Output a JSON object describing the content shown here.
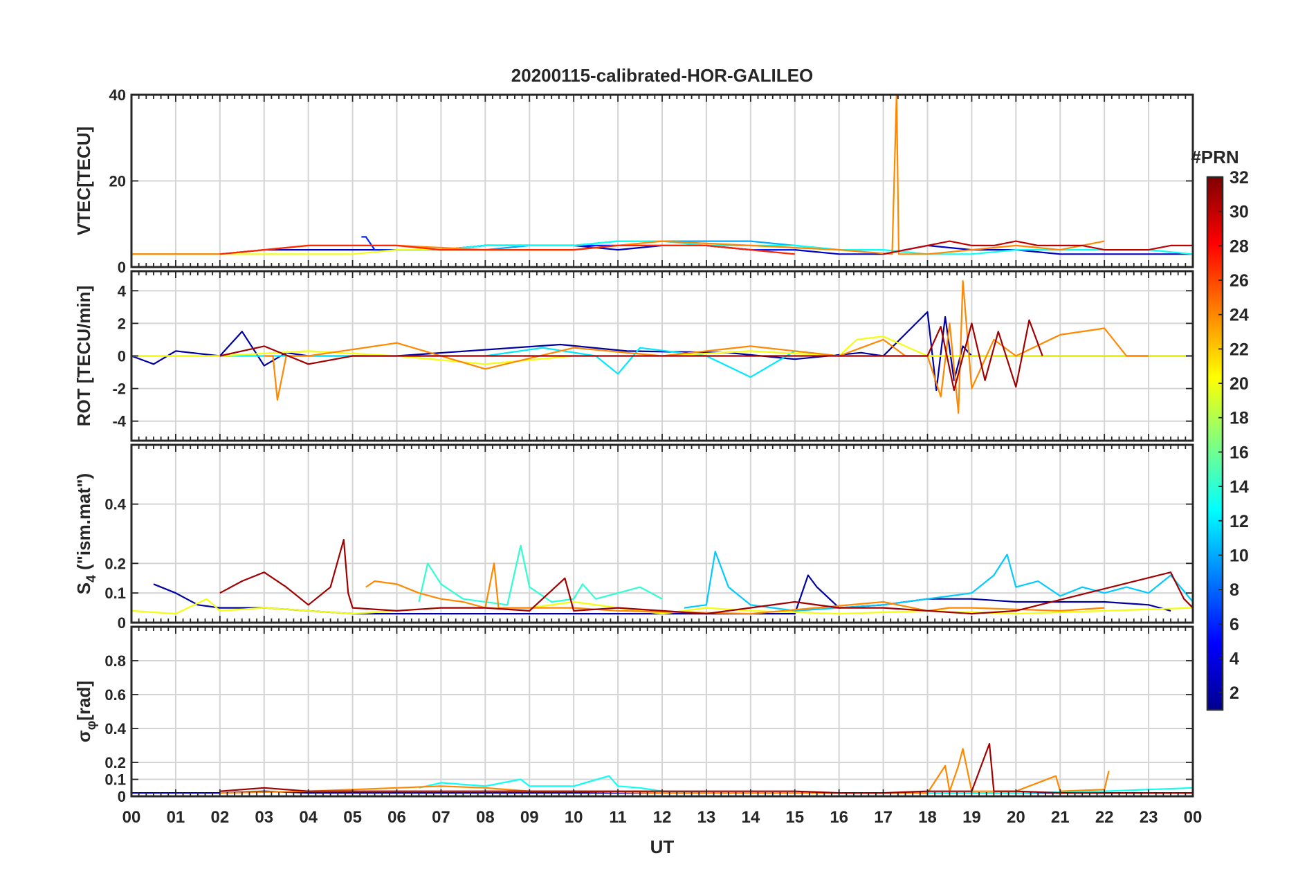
{
  "figure": {
    "title": "20200115-calibrated-HOR-GALILEO",
    "x_label": "UT",
    "x_ticks": [
      "00",
      "01",
      "02",
      "03",
      "04",
      "05",
      "06",
      "07",
      "08",
      "09",
      "10",
      "11",
      "12",
      "13",
      "14",
      "15",
      "16",
      "17",
      "18",
      "19",
      "20",
      "21",
      "22",
      "23",
      "00"
    ]
  },
  "colorbar": {
    "title": "#PRN",
    "ticks": [
      2,
      4,
      6,
      8,
      10,
      12,
      14,
      16,
      18,
      20,
      22,
      24,
      26,
      28,
      30,
      32
    ],
    "range": [
      1,
      32
    ],
    "colormap": "jet"
  },
  "chart_data": [
    {
      "type": "line",
      "id": "vtec",
      "ylabel": "VTEC[TECU]",
      "ylim": [
        0,
        40
      ],
      "yticks": [
        0,
        20,
        40
      ],
      "grid": true,
      "series": [
        {
          "prn": 3,
          "x": [
            0,
            1,
            2,
            3,
            4,
            5,
            6,
            7,
            8,
            9,
            10,
            11,
            12,
            13,
            14,
            15,
            16,
            17,
            18,
            19,
            20,
            21,
            22,
            23,
            24
          ],
          "y": [
            3,
            3,
            3,
            4,
            4,
            4,
            4,
            4,
            5,
            5,
            5,
            4,
            5,
            5,
            4,
            4,
            3,
            3,
            5,
            4,
            4,
            3,
            3,
            3,
            3
          ]
        },
        {
          "prn": 6,
          "x": [
            5.2,
            5.3,
            5.5,
            6,
            7,
            8,
            9,
            10,
            11,
            12,
            13,
            14,
            15
          ],
          "y": [
            7,
            7,
            4,
            4,
            4,
            5,
            5,
            5,
            5,
            5,
            5,
            4,
            4
          ]
        },
        {
          "prn": 10,
          "x": [
            6,
            7,
            8,
            9,
            10,
            11,
            12,
            13,
            14,
            15,
            16,
            17
          ],
          "y": [
            4,
            4,
            4,
            5,
            5,
            6,
            6,
            6,
            6,
            5,
            4,
            4
          ]
        },
        {
          "prn": 13,
          "x": [
            7,
            8,
            9,
            10,
            11,
            12,
            13,
            14,
            15,
            16,
            17,
            18,
            19,
            20,
            21,
            22,
            23,
            24
          ],
          "y": [
            4,
            5,
            5,
            5,
            6,
            6,
            5,
            5,
            5,
            4,
            4,
            3,
            3,
            4,
            4,
            4,
            4,
            3
          ]
        },
        {
          "prn": 20,
          "x": [
            0,
            1,
            2,
            3,
            4,
            5,
            6,
            7,
            8,
            9,
            10,
            11,
            12,
            13
          ],
          "y": [
            3,
            3,
            3,
            3,
            3,
            3,
            4,
            4,
            4,
            4,
            4,
            5,
            5,
            5
          ]
        },
        {
          "prn": 24,
          "x": [
            0,
            2,
            4,
            6,
            8,
            10,
            12,
            14,
            16,
            17.2,
            17.3,
            17.35,
            17.5,
            18,
            19,
            20,
            21,
            22
          ],
          "y": [
            3,
            3,
            5,
            5,
            4,
            4,
            6,
            5,
            4,
            3,
            40,
            3,
            3,
            3,
            4,
            5,
            4,
            6
          ]
        },
        {
          "prn": 27,
          "x": [
            2,
            3,
            4,
            5,
            6,
            7,
            8,
            9,
            10,
            11,
            12,
            13,
            14,
            15
          ],
          "y": [
            3,
            4,
            5,
            5,
            5,
            4,
            4,
            4,
            4,
            5,
            5,
            5,
            4,
            3
          ]
        },
        {
          "prn": 30,
          "x": [
            17,
            18,
            18.5,
            19,
            19.5,
            20,
            20.5,
            21,
            21.5,
            22,
            22.5,
            23,
            23.5,
            24
          ],
          "y": [
            3,
            5,
            6,
            5,
            5,
            6,
            5,
            5,
            5,
            4,
            4,
            4,
            5,
            5
          ]
        }
      ]
    },
    {
      "type": "line",
      "id": "rot",
      "ylabel": "ROT [TECU/min]",
      "ylim": [
        -5.2,
        5.2
      ],
      "yticks": [
        -4,
        -2,
        0,
        2,
        4
      ],
      "grid": true,
      "series": [
        {
          "prn": 2,
          "x": [
            0,
            0.5,
            1,
            2,
            2.5,
            3,
            3.5,
            4,
            5,
            6,
            9.7,
            11.2,
            13.5,
            15,
            16.5,
            17,
            18,
            18.2,
            18.4,
            18.6,
            18.8,
            19,
            20,
            21,
            22,
            23,
            24
          ],
          "y": [
            0,
            -0.5,
            0.3,
            0,
            1.5,
            -0.6,
            0.2,
            0,
            0,
            0,
            0.7,
            0.3,
            0.2,
            -0.2,
            0.2,
            0,
            2.7,
            -2.1,
            2.4,
            -1.5,
            0.6,
            0,
            0,
            0,
            0,
            0,
            0
          ]
        },
        {
          "prn": 12,
          "x": [
            0,
            4,
            8,
            9.3,
            10.5,
            11,
            11.5,
            13,
            14,
            15,
            16,
            18,
            20,
            21,
            22,
            23,
            24
          ],
          "y": [
            0,
            0,
            0,
            0.5,
            0,
            -1.1,
            0.5,
            0,
            -1.3,
            0.3,
            0,
            0,
            0,
            0,
            0,
            0,
            0
          ]
        },
        {
          "prn": 20,
          "x": [
            0,
            2,
            4,
            6,
            8,
            10,
            12,
            14,
            16,
            16.4,
            17,
            18,
            20,
            22,
            24
          ],
          "y": [
            0,
            0,
            0.3,
            0,
            -0.5,
            0,
            0,
            0.3,
            0,
            1,
            1.2,
            0,
            0,
            0,
            0
          ]
        },
        {
          "prn": 24,
          "x": [
            3,
            3.2,
            3.3,
            3.5,
            4,
            6,
            8,
            10,
            12,
            14,
            16,
            17,
            17.5,
            18,
            18.3,
            18.5,
            18.7,
            18.8,
            19,
            19.5,
            20,
            21,
            22,
            22.5,
            23
          ],
          "y": [
            0,
            0,
            -2.7,
            0,
            0,
            0.8,
            -0.8,
            0.5,
            0,
            0.6,
            0,
            1,
            0,
            0,
            -2.5,
            2,
            -3.5,
            4.6,
            -2,
            1,
            0,
            1.3,
            1.7,
            0,
            0
          ]
        },
        {
          "prn": 31,
          "x": [
            2,
            3,
            4,
            5,
            6,
            7,
            8,
            9,
            10,
            11,
            12,
            13,
            14,
            15,
            16,
            17,
            18,
            18.3,
            18.6,
            19,
            19.3,
            19.6,
            20,
            20.3,
            20.6
          ],
          "y": [
            0,
            0.6,
            -0.5,
            0,
            0,
            0,
            0,
            0,
            0,
            0,
            0,
            0,
            0,
            0,
            0,
            0,
            0,
            1.8,
            -2.1,
            2,
            -1.5,
            1.5,
            -1.9,
            2.2,
            0
          ]
        }
      ]
    },
    {
      "type": "line",
      "id": "s4",
      "ylabel": "S4 (\"ism.mat\")",
      "ylabel_main": "S",
      "ylabel_sub": "4",
      "ylabel_rest": " (\"ism.mat\")",
      "ylim": [
        0,
        0.6
      ],
      "yticks": [
        0,
        0.1,
        0.2,
        0.4
      ],
      "grid": true,
      "series": [
        {
          "prn": 2,
          "x": [
            0.5,
            1,
            1.5,
            2,
            3,
            4,
            5,
            6,
            7,
            8,
            10,
            11,
            12,
            14,
            15,
            15.3,
            15.5,
            16,
            17,
            18,
            19,
            20,
            21,
            22,
            23,
            23.5
          ],
          "y": [
            0.13,
            0.1,
            0.06,
            0.05,
            0.05,
            0.04,
            0.03,
            0.03,
            0.03,
            0.03,
            0.03,
            0.03,
            0.03,
            0.03,
            0.03,
            0.16,
            0.12,
            0.05,
            0.06,
            0.08,
            0.08,
            0.07,
            0.07,
            0.07,
            0.06,
            0.04
          ]
        },
        {
          "prn": 11,
          "x": [
            12.5,
            13,
            13.2,
            13.5,
            14,
            15,
            17,
            18,
            18.5,
            19,
            19.5,
            19.8,
            20,
            20.5,
            21,
            21.5,
            22,
            22.5,
            23,
            23.5,
            24
          ],
          "y": [
            0.05,
            0.06,
            0.24,
            0.12,
            0.06,
            0.04,
            0.06,
            0.08,
            0.09,
            0.1,
            0.16,
            0.23,
            0.12,
            0.14,
            0.09,
            0.12,
            0.1,
            0.12,
            0.1,
            0.16,
            0.07
          ]
        },
        {
          "prn": 14,
          "x": [
            6.5,
            6.7,
            7,
            7.5,
            8.5,
            8.8,
            9,
            9.5,
            10,
            10.2,
            10.5,
            11,
            11.5,
            12
          ],
          "y": [
            0.07,
            0.2,
            0.13,
            0.08,
            0.06,
            0.26,
            0.12,
            0.07,
            0.08,
            0.13,
            0.08,
            0.1,
            0.12,
            0.08
          ]
        },
        {
          "prn": 20,
          "x": [
            0,
            1,
            1.7,
            2,
            3,
            5,
            7,
            9,
            10,
            12,
            13,
            14,
            16,
            18,
            20,
            22,
            24
          ],
          "y": [
            0.04,
            0.03,
            0.08,
            0.04,
            0.05,
            0.03,
            0.05,
            0.05,
            0.07,
            0.03,
            0.05,
            0.04,
            0.03,
            0.04,
            0.03,
            0.04,
            0.05
          ]
        },
        {
          "prn": 24,
          "x": [
            5.3,
            5.5,
            6,
            6.5,
            7,
            7.5,
            8,
            8.2,
            8.3,
            9,
            9.5,
            10,
            11,
            14,
            17,
            18,
            18.5,
            19,
            21,
            22
          ],
          "y": [
            0.12,
            0.14,
            0.13,
            0.1,
            0.08,
            0.07,
            0.05,
            0.2,
            0.05,
            0.05,
            0.05,
            0.05,
            0.04,
            0.03,
            0.07,
            0.04,
            0.05,
            0.05,
            0.04,
            0.05
          ]
        },
        {
          "prn": 31,
          "x": [
            2,
            2.5,
            3,
            3.5,
            4,
            4.5,
            4.8,
            4.9,
            5,
            6,
            7,
            8,
            9,
            9.8,
            10,
            11,
            12,
            13,
            15,
            16,
            17,
            18,
            19,
            20,
            23.5,
            23.8,
            24
          ],
          "y": [
            0.1,
            0.14,
            0.17,
            0.12,
            0.06,
            0.12,
            0.28,
            0.1,
            0.05,
            0.04,
            0.05,
            0.05,
            0.04,
            0.15,
            0.04,
            0.05,
            0.04,
            0.03,
            0.07,
            0.05,
            0.05,
            0.04,
            0.03,
            0.04,
            0.17,
            0.08,
            0.05
          ]
        }
      ]
    },
    {
      "type": "line",
      "id": "sigma_phi",
      "ylabel": "σφ[rad]",
      "ylabel_main": "σ",
      "ylabel_sub": "φ",
      "ylabel_rest": "[rad]",
      "ylim": [
        0,
        1
      ],
      "yticks": [
        0,
        0.1,
        0.2,
        0.4,
        0.6,
        0.8
      ],
      "grid": true,
      "series": [
        {
          "prn": 3,
          "x": [
            0,
            1,
            2,
            3,
            4,
            5,
            6,
            7,
            8,
            9,
            10,
            11,
            12,
            13,
            14,
            15,
            16,
            17,
            18,
            19,
            20,
            21,
            22,
            23,
            24
          ],
          "y": [
            0.02,
            0.02,
            0.02,
            0.03,
            0.02,
            0.02,
            0.02,
            0.02,
            0.02,
            0.02,
            0.02,
            0.02,
            0.02,
            0.02,
            0.02,
            0.02,
            0.02,
            0.02,
            0.02,
            0.02,
            0.02,
            0.02,
            0.02,
            0.02,
            0.02
          ]
        },
        {
          "prn": 13,
          "x": [
            6.5,
            7,
            8,
            8.8,
            9,
            10,
            10.8,
            11,
            11.5,
            12,
            13,
            14,
            16,
            18,
            20,
            22,
            23,
            24
          ],
          "y": [
            0.05,
            0.08,
            0.06,
            0.1,
            0.06,
            0.06,
            0.12,
            0.06,
            0.05,
            0.03,
            0.02,
            0.02,
            0.02,
            0.02,
            0.02,
            0.03,
            0.04,
            0.05
          ]
        },
        {
          "prn": 24,
          "x": [
            2,
            4,
            6,
            7,
            8,
            9,
            10,
            12,
            14,
            16,
            18,
            18.4,
            18.5,
            18.7,
            18.8,
            19,
            20,
            20.9,
            21,
            22,
            22.1
          ],
          "y": [
            0.02,
            0.03,
            0.05,
            0.06,
            0.05,
            0.03,
            0.03,
            0.02,
            0.02,
            0.02,
            0.02,
            0.18,
            0.03,
            0.18,
            0.28,
            0.03,
            0.03,
            0.12,
            0.03,
            0.04,
            0.15
          ]
        },
        {
          "prn": 31,
          "x": [
            2,
            3,
            4,
            6,
            10,
            15,
            16,
            17,
            18,
            19,
            19.4,
            19.5,
            20,
            21,
            22,
            23,
            24
          ],
          "y": [
            0.03,
            0.05,
            0.03,
            0.03,
            0.03,
            0.03,
            0.02,
            0.02,
            0.03,
            0.03,
            0.31,
            0.03,
            0.03,
            0.02,
            0.02,
            0.02,
            0.02
          ]
        }
      ]
    }
  ]
}
